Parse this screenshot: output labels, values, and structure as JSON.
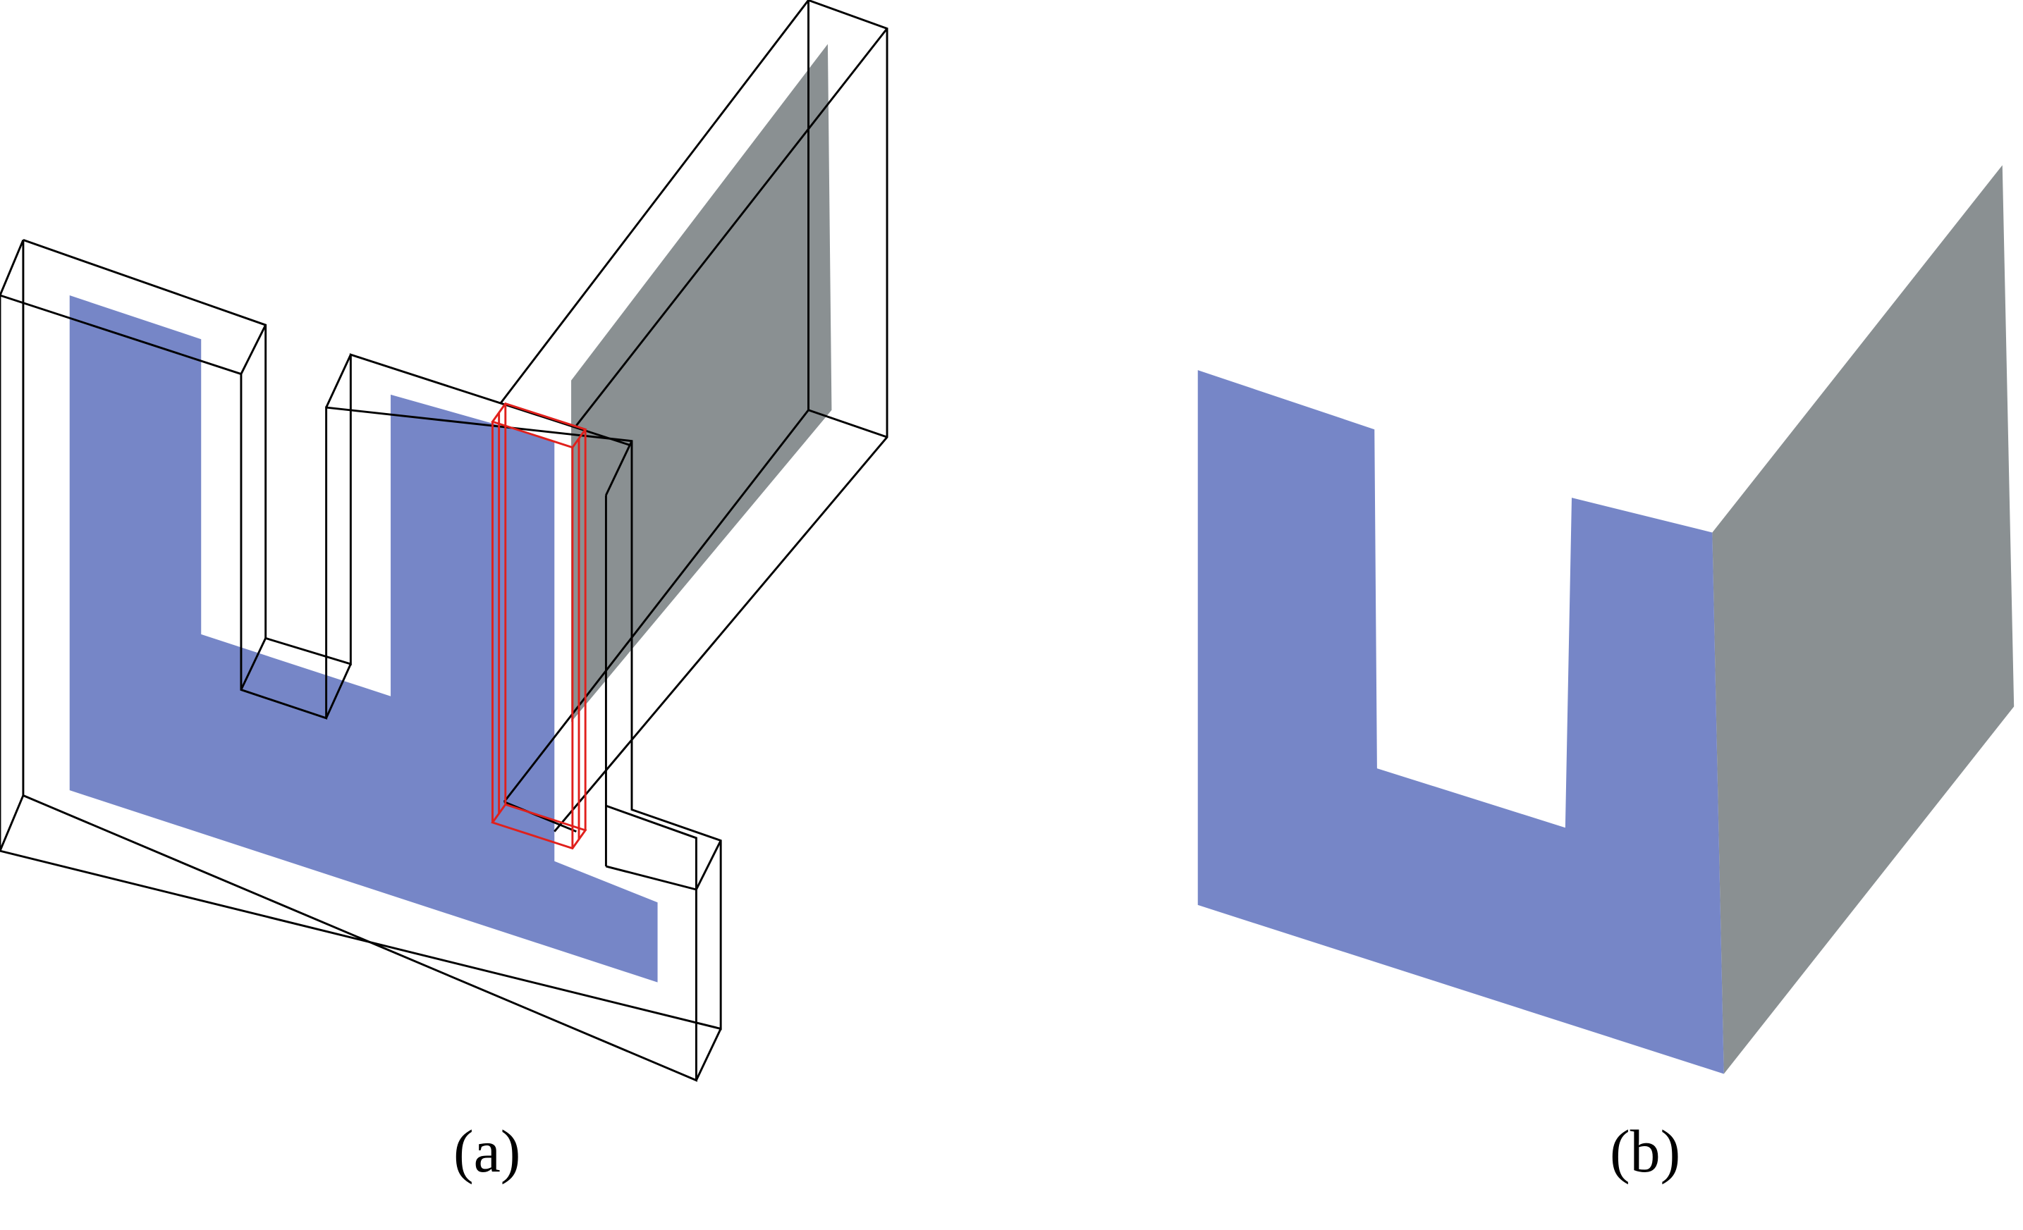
{
  "captions": {
    "a": "(a)",
    "b": "(b)"
  },
  "colors": {
    "face_blue": "#7686c7",
    "face_gray": "#8a9092",
    "outline_black": "#000000",
    "highlight_red": "#e0201c",
    "background": "#ffffff"
  }
}
